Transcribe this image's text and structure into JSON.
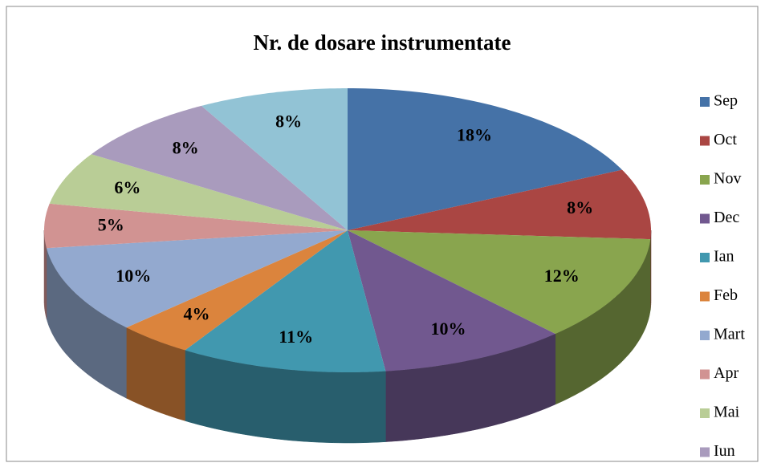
{
  "chart_data": {
    "type": "pie3d",
    "title": "Nr. de dosare instrumentate",
    "categories": [
      "Sep",
      "Oct",
      "Nov",
      "Dec",
      "Ian",
      "Feb",
      "Mart",
      "Apr",
      "Mai",
      "Iun",
      null
    ],
    "values": [
      18,
      8,
      12,
      10,
      11,
      4,
      10,
      5,
      6,
      8,
      8
    ],
    "value_labels": [
      "18%",
      "8%",
      "12%",
      "10%",
      "11%",
      "4%",
      "10%",
      "5%",
      "6%",
      "8%",
      "8%"
    ],
    "colors": [
      "#4572a7",
      "#aa4643",
      "#89a54e",
      "#71588f",
      "#4198af",
      "#db843d",
      "#93a9cf",
      "#d19392",
      "#b9cd96",
      "#a99bbd",
      "#92c3d5"
    ],
    "legend": "right"
  }
}
